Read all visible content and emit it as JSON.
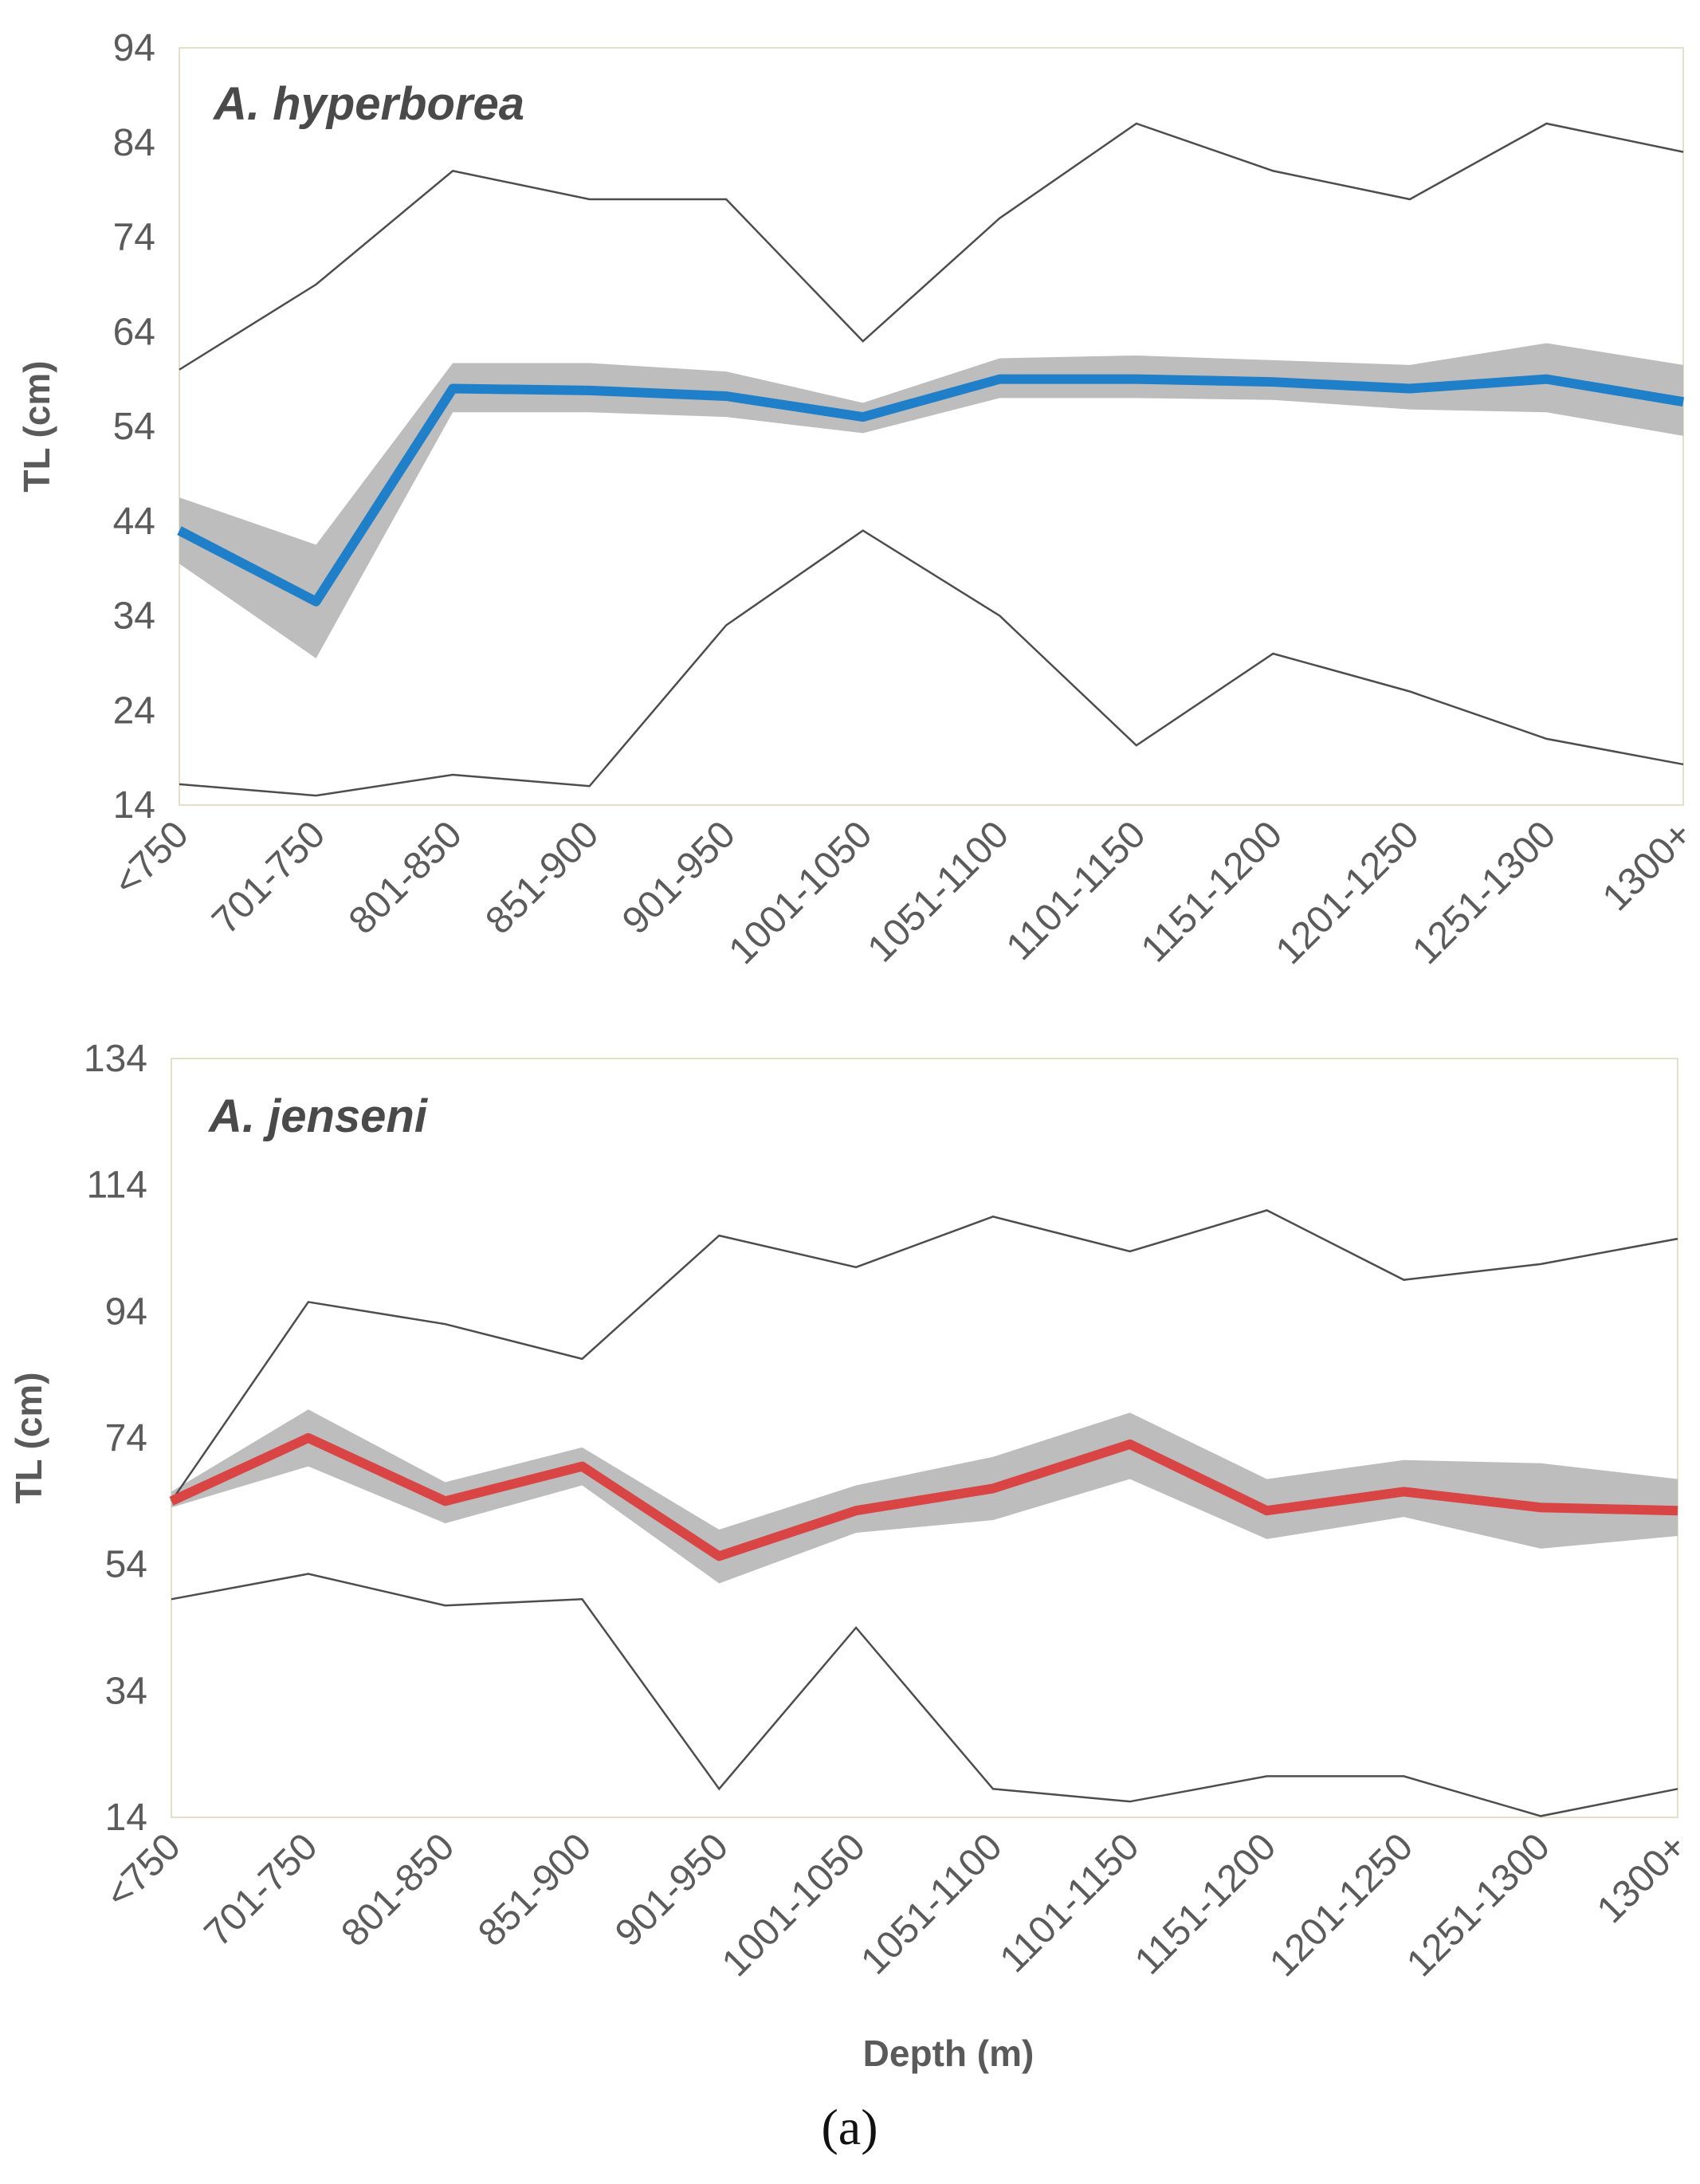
{
  "figure_label": "(a)",
  "chart_data": [
    {
      "type": "line",
      "title": "A. hyperborea",
      "xlabel": "",
      "ylabel": "TL (cm)",
      "ylim": [
        14,
        94
      ],
      "yticks": [
        14,
        24,
        34,
        44,
        54,
        64,
        74,
        84,
        94
      ],
      "categories": [
        "<750",
        "701-750",
        "801-850",
        "851-900",
        "901-950",
        "1001-1050",
        "1051-1100",
        "1101-1150",
        "1151-1200",
        "1201-1250",
        "1251-1300",
        "1300+"
      ],
      "mean_color": "#1f7fc8",
      "band_color": "#bdbdbd",
      "series": [
        {
          "name": "max",
          "role": "max",
          "values": [
            60,
            69,
            81,
            78,
            78,
            63,
            76,
            86,
            81,
            78,
            86,
            83
          ]
        },
        {
          "name": "mean",
          "role": "mean",
          "values": [
            43,
            35.5,
            58,
            57.8,
            57.2,
            55,
            59,
            59,
            58.7,
            58,
            59,
            56.6
          ]
        },
        {
          "name": "ci_upper",
          "role": "ci_upper",
          "values": [
            46.5,
            41.5,
            60.7,
            60.7,
            59.8,
            56.5,
            61.2,
            61.5,
            61,
            60.5,
            62.8,
            60.5
          ]
        },
        {
          "name": "ci_lower",
          "role": "ci_lower",
          "values": [
            39.5,
            29.5,
            55.5,
            55.5,
            55,
            53.3,
            57,
            57,
            56.8,
            55.8,
            55.5,
            53
          ]
        },
        {
          "name": "min",
          "role": "min",
          "values": [
            16.2,
            15,
            17.2,
            16,
            33,
            43,
            34,
            20.3,
            30,
            26,
            21,
            18.3
          ]
        }
      ]
    },
    {
      "type": "line",
      "title": "A. jenseni",
      "xlabel": "Depth (m)",
      "ylabel": "TL (cm)",
      "ylim": [
        14,
        134
      ],
      "yticks": [
        14,
        34,
        54,
        74,
        94,
        114,
        134
      ],
      "categories": [
        "<750",
        "701-750",
        "801-850",
        "851-900",
        "901-950",
        "1001-1050",
        "1051-1100",
        "1101-1150",
        "1151-1200",
        "1201-1250",
        "1251-1300",
        "1300+"
      ],
      "mean_color": "#d94545",
      "band_color": "#bdbdbd",
      "series": [
        {
          "name": "max",
          "role": "max",
          "values": [
            64,
            95.5,
            92,
            86.5,
            106,
            101,
            109,
            103.5,
            110,
            99,
            101.5,
            105.5
          ]
        },
        {
          "name": "mean",
          "role": "mean",
          "values": [
            64,
            74,
            64,
            69.5,
            55.3,
            62.5,
            66,
            73,
            62.5,
            65.5,
            63,
            62.5
          ]
        },
        {
          "name": "ci_upper",
          "role": "ci_upper",
          "values": [
            65.5,
            78.5,
            67,
            72.5,
            59.5,
            66.5,
            71,
            78,
            67.5,
            70.5,
            70,
            67.5
          ]
        },
        {
          "name": "ci_lower",
          "role": "ci_lower",
          "values": [
            63,
            69.5,
            60.5,
            66.5,
            51,
            59,
            61,
            67.5,
            58,
            61.5,
            56.5,
            58.5
          ]
        },
        {
          "name": "min",
          "role": "min",
          "values": [
            48.5,
            52.5,
            47.5,
            48.5,
            18.5,
            44,
            18.5,
            16.5,
            20.5,
            20.5,
            14.2,
            18.5
          ]
        }
      ]
    }
  ]
}
